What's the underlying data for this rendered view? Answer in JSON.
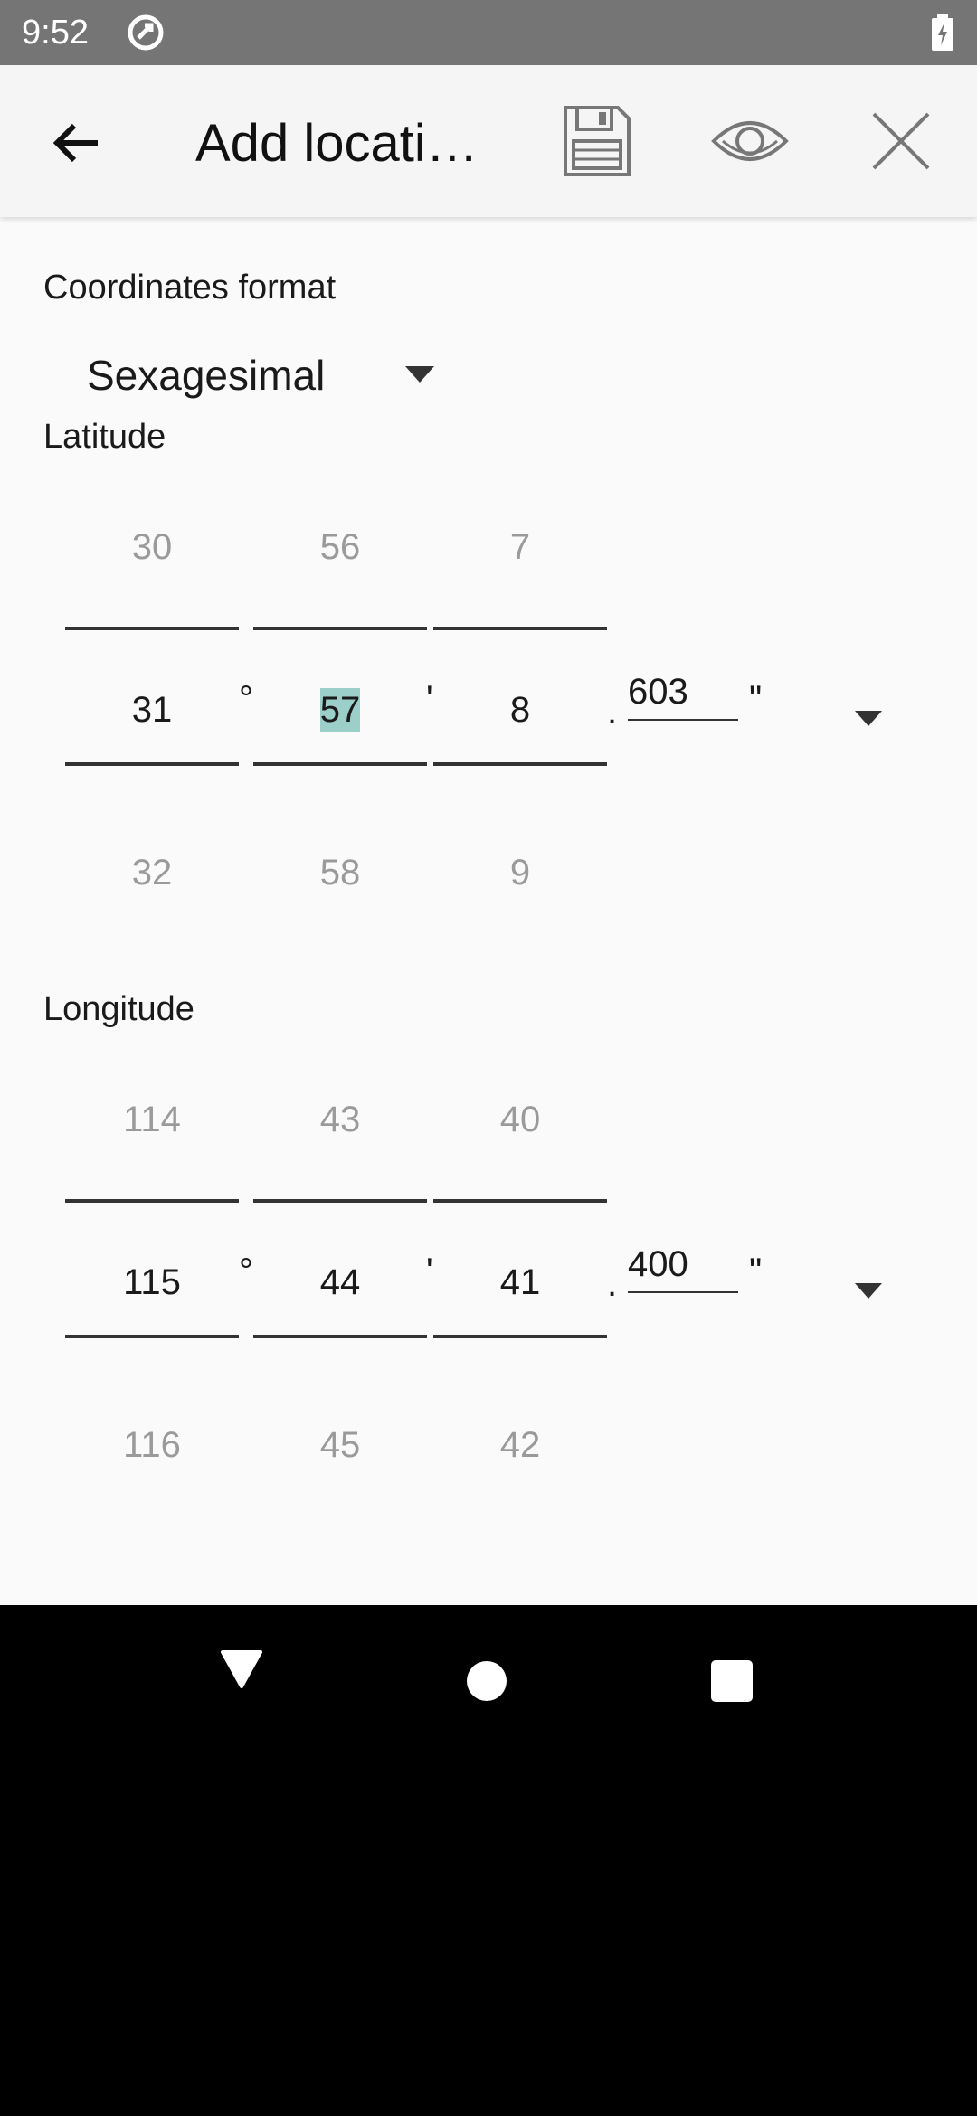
{
  "status_bar": {
    "time": "9:52"
  },
  "app_bar": {
    "title": "Add locati…"
  },
  "coordinates_format": {
    "label": "Coordinates format",
    "selected": "Sexagesimal"
  },
  "latitude": {
    "label": "Latitude",
    "degrees": {
      "prev": "30",
      "current": "31",
      "next": "32"
    },
    "minutes": {
      "prev": "56",
      "current": "57",
      "next": "58"
    },
    "seconds": {
      "prev": "7",
      "current": "8",
      "next": "9"
    },
    "decimal": "603",
    "degree_symbol": "°",
    "minute_symbol": "'",
    "dot": ".",
    "second_symbol": "\""
  },
  "longitude": {
    "label": "Longitude",
    "degrees": {
      "prev": "114",
      "current": "115",
      "next": "116"
    },
    "minutes": {
      "prev": "43",
      "current": "44",
      "next": "45"
    },
    "seconds": {
      "prev": "40",
      "current": "41",
      "next": "42"
    },
    "decimal": "400",
    "degree_symbol": "°",
    "minute_symbol": "'",
    "dot": ".",
    "second_symbol": "\""
  },
  "colors": {
    "highlight": "#9ccfc9",
    "app_bar": "#f5f5f5",
    "status_bar": "#757575"
  }
}
